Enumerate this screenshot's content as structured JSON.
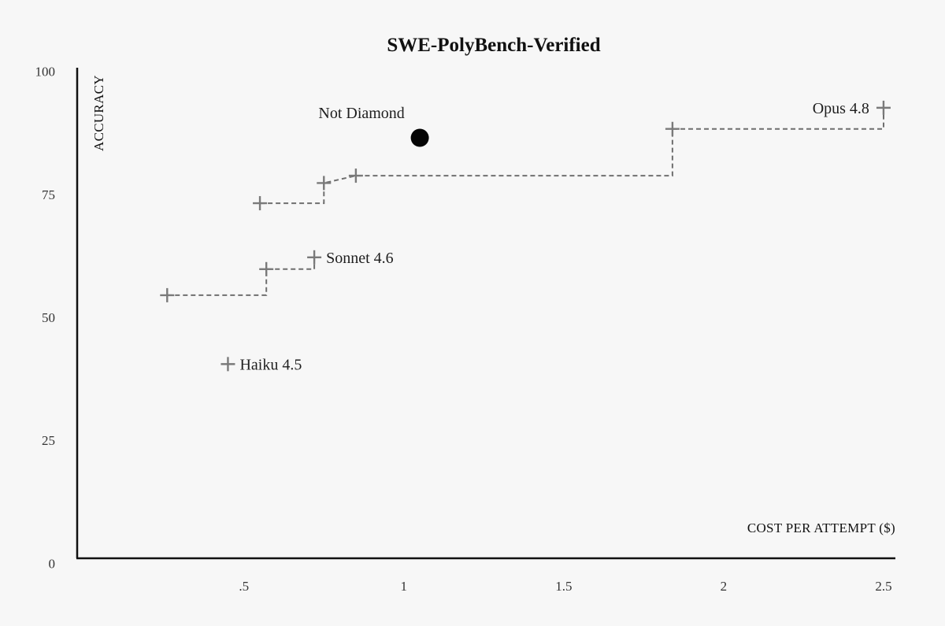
{
  "chart_data": {
    "type": "scatter",
    "title": "SWE-PolyBench-Verified",
    "xlabel": "COST PER ATTEMPT ($)",
    "ylabel": "ACCURACY",
    "xlim": [
      0,
      2.5
    ],
    "ylim": [
      0,
      100
    ],
    "x_ticks": [
      {
        "value": 0.5,
        "label": ".5"
      },
      {
        "value": 1,
        "label": "1"
      },
      {
        "value": 1.5,
        "label": "1.5"
      },
      {
        "value": 2,
        "label": "2"
      },
      {
        "value": 2.5,
        "label": "2.5"
      }
    ],
    "y_ticks": [
      {
        "value": 0,
        "label": "0"
      },
      {
        "value": 25,
        "label": "25"
      },
      {
        "value": 50,
        "label": "50"
      },
      {
        "value": 75,
        "label": "75"
      },
      {
        "value": 100,
        "label": "100"
      }
    ],
    "grid": false,
    "points": [
      {
        "x": 0.26,
        "y": 54.5,
        "label": ""
      },
      {
        "x": 0.57,
        "y": 59.8,
        "label": ""
      },
      {
        "x": 0.72,
        "y": 62.2,
        "label": "Sonnet 4.6"
      },
      {
        "x": 0.45,
        "y": 40.5,
        "label": "Haiku 4.5"
      },
      {
        "x": 0.55,
        "y": 73.2,
        "label": ""
      },
      {
        "x": 0.75,
        "y": 77.3,
        "label": ""
      },
      {
        "x": 0.85,
        "y": 78.8,
        "label": ""
      },
      {
        "x": 1.84,
        "y": 88.3,
        "label": ""
      },
      {
        "x": 2.5,
        "y": 92.6,
        "label": "Opus 4.8"
      }
    ],
    "highlight": {
      "x": 1.05,
      "y": 86.5,
      "label": "Not Diamond"
    },
    "frontier_lines": [
      [
        [
          0.26,
          54.5
        ],
        [
          0.57,
          54.5
        ],
        [
          0.57,
          59.8
        ],
        [
          0.72,
          59.8
        ],
        [
          0.72,
          62.2
        ]
      ],
      [
        [
          0.55,
          73.2
        ],
        [
          0.75,
          73.2
        ],
        [
          0.75,
          77.3
        ],
        [
          0.85,
          78.8
        ],
        [
          1.84,
          78.8
        ],
        [
          1.84,
          88.3
        ],
        [
          2.5,
          88.3
        ],
        [
          2.5,
          92.6
        ]
      ]
    ]
  }
}
